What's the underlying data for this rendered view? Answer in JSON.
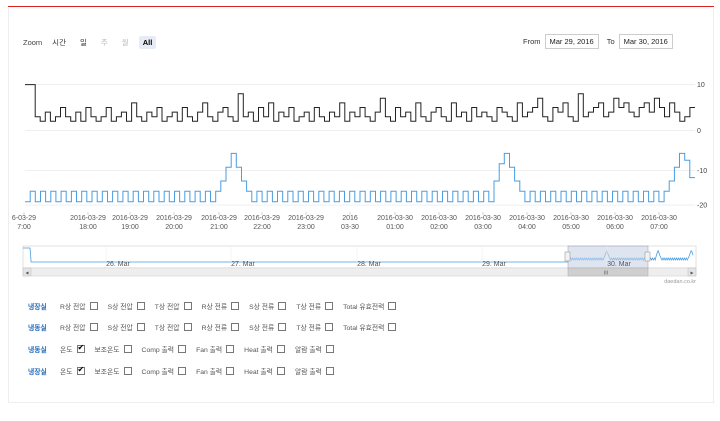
{
  "zoom": {
    "label": "Zoom",
    "buttons": [
      {
        "label": "시간",
        "state": "normal"
      },
      {
        "label": "일",
        "state": "normal"
      },
      {
        "label": "주",
        "state": "disabled"
      },
      {
        "label": "월",
        "state": "disabled"
      },
      {
        "label": "All",
        "state": "active"
      }
    ]
  },
  "range": {
    "from_label": "From",
    "from_value": "Mar 29, 2016",
    "to_label": "To",
    "to_value": "Mar 30, 2016"
  },
  "colors": {
    "series1": "#222222",
    "series2": "#4a9de0",
    "accent_line": "#dd2222",
    "room_label": "#2a6ebb"
  },
  "chart_data": [
    {
      "type": "line",
      "series": [
        {
          "values": [
            10,
            10,
            3,
            2,
            4,
            2,
            3,
            5,
            3,
            2,
            4,
            2,
            5,
            3,
            2,
            3,
            5,
            2,
            3,
            4,
            2,
            6,
            3,
            2,
            4,
            3,
            5,
            2,
            3,
            4,
            2,
            5,
            3,
            2,
            4,
            6,
            3,
            2,
            4,
            5,
            3,
            2,
            8,
            3,
            4,
            2,
            5,
            3,
            6,
            2,
            4,
            3,
            5,
            2,
            3,
            4,
            2,
            5,
            3,
            2,
            4,
            3,
            6,
            2,
            4,
            3,
            5,
            3,
            2,
            4,
            7,
            3,
            2,
            5,
            3,
            4,
            2,
            6,
            3,
            2,
            4,
            5,
            3,
            2,
            6,
            3,
            4,
            2,
            5,
            3,
            4,
            3,
            2,
            5,
            4,
            3,
            2,
            6,
            3,
            4,
            5,
            7,
            3,
            2,
            5,
            4,
            6,
            3,
            2,
            8,
            3,
            4,
            5,
            6,
            3,
            4,
            7,
            5,
            6,
            4,
            3,
            5,
            6,
            4,
            7,
            5,
            3,
            6,
            4,
            2,
            3,
            5
          ]
        }
      ],
      "yticks": [
        "10",
        "0"
      ],
      "ylim": [
        -1,
        11
      ]
    },
    {
      "type": "line",
      "series": [
        {
          "values": [
            -19,
            -16,
            -19,
            -16,
            -19,
            -16,
            -19,
            -16,
            -19,
            -16,
            -19,
            -16,
            -19,
            -16,
            -19,
            -16,
            -19,
            -16,
            -19,
            -16,
            -19,
            -16,
            -19,
            -16,
            -19,
            -16,
            -19,
            -16,
            -19,
            -16,
            -19,
            -16,
            -19,
            -16,
            -19,
            -16,
            -19,
            -16,
            -13,
            -9,
            -5,
            -9,
            -13,
            -16,
            -19,
            -16,
            -19,
            -16,
            -19,
            -16,
            -19,
            -16,
            -19,
            -16,
            -19,
            -16,
            -19,
            -16,
            -19,
            -16,
            -19,
            -16,
            -19,
            -16,
            -19,
            -16,
            -19,
            -16,
            -19,
            -16,
            -19,
            -16,
            -19,
            -16,
            -19,
            -16,
            -19,
            -16,
            -19,
            -16,
            -19,
            -16,
            -19,
            -16,
            -19,
            -16,
            -19,
            -16,
            -19,
            -16,
            -19,
            -13,
            -8,
            -5,
            -9,
            -13,
            -16,
            -19,
            -16,
            -19,
            -16,
            -19,
            -16,
            -19,
            -16,
            -19,
            -16,
            -19,
            -16,
            -19,
            -16,
            -19,
            -16,
            -19,
            -16,
            -19,
            -16,
            -19,
            -16,
            -19,
            -16,
            -19,
            -16,
            -19,
            -16,
            -13,
            -9,
            -5,
            -7,
            -12
          ]
        }
      ],
      "yticks": [
        "-10",
        "-20"
      ],
      "ylim": [
        -22,
        -4
      ]
    }
  ],
  "xaxis": [
    {
      "line1": "6-03-29",
      "line2": "7:00"
    },
    {
      "line1": "2016-03-29",
      "line2": "18:00"
    },
    {
      "line1": "2016-03-29",
      "line2": "19:00"
    },
    {
      "line1": "2016-03-29",
      "line2": "20:00"
    },
    {
      "line1": "2016-03-29",
      "line2": "21:00"
    },
    {
      "line1": "2016-03-29",
      "line2": "22:00"
    },
    {
      "line1": "2016-03-29",
      "line2": "23:00"
    },
    {
      "line1": "2016",
      "line2": "03-30"
    },
    {
      "line1": "2016-03-30",
      "line2": "01:00"
    },
    {
      "line1": "2016-03-30",
      "line2": "02:00"
    },
    {
      "line1": "2016-03-30",
      "line2": "03:00"
    },
    {
      "line1": "2016-03-30",
      "line2": "04:00"
    },
    {
      "line1": "2016-03-30",
      "line2": "05:00"
    },
    {
      "line1": "2016-03-30",
      "line2": "06:00"
    },
    {
      "line1": "2016-03-30",
      "line2": "07:00"
    }
  ],
  "navigator": {
    "labels": [
      "26. Mar",
      "27. Mar",
      "28. Mar",
      "29. Mar",
      "30. Mar"
    ],
    "grip": "III",
    "credit": "daedan.co.kr"
  },
  "rows": [
    {
      "room": "냉장실",
      "options": [
        {
          "label": "R상 전압",
          "checked": false
        },
        {
          "label": "S상 전압",
          "checked": false
        },
        {
          "label": "T상 전압",
          "checked": false
        },
        {
          "label": "R상 전류",
          "checked": false
        },
        {
          "label": "S상 전류",
          "checked": false
        },
        {
          "label": "T상 전류",
          "checked": false
        },
        {
          "label": "Total 유효전력",
          "checked": false
        }
      ]
    },
    {
      "room": "냉동실",
      "options": [
        {
          "label": "R상 전압",
          "checked": false
        },
        {
          "label": "S상 전압",
          "checked": false
        },
        {
          "label": "T상 전압",
          "checked": false
        },
        {
          "label": "R상 전류",
          "checked": false
        },
        {
          "label": "S상 전류",
          "checked": false
        },
        {
          "label": "T상 전류",
          "checked": false
        },
        {
          "label": "Total 유효전력",
          "checked": false
        }
      ]
    },
    {
      "room": "냉동실",
      "options": [
        {
          "label": "온도",
          "checked": true
        },
        {
          "label": "보조온도",
          "checked": false
        },
        {
          "label": "Comp 출력",
          "checked": false
        },
        {
          "label": "Fan 출력",
          "checked": false
        },
        {
          "label": "Heat 출력",
          "checked": false
        },
        {
          "label": "알람 출력",
          "checked": false
        }
      ]
    },
    {
      "room": "냉장실",
      "options": [
        {
          "label": "온도",
          "checked": true
        },
        {
          "label": "보조온도",
          "checked": false
        },
        {
          "label": "Comp 출력",
          "checked": false
        },
        {
          "label": "Fan 출력",
          "checked": false
        },
        {
          "label": "Heat 출력",
          "checked": false
        },
        {
          "label": "알람 출력",
          "checked": false
        }
      ]
    }
  ]
}
